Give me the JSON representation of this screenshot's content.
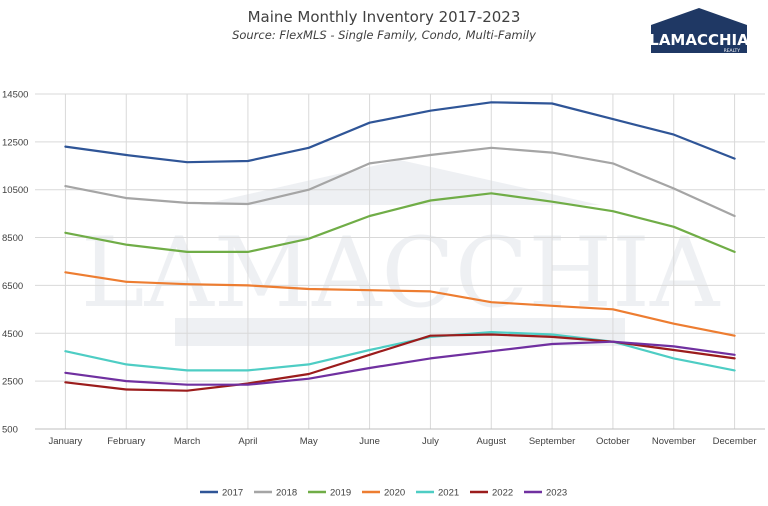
{
  "chart_data": {
    "type": "line",
    "title": "Maine Monthly Inventory 2017-2023",
    "subtitle": "Source: FlexMLS - Single Family, Condo, Multi-Family",
    "categories": [
      "January",
      "February",
      "March",
      "April",
      "May",
      "June",
      "July",
      "August",
      "September",
      "October",
      "November",
      "December"
    ],
    "ylim": [
      500,
      15000
    ],
    "yticks": [
      500,
      2500,
      4500,
      6500,
      8500,
      10500,
      12500,
      14500
    ],
    "grid": true,
    "legend": "bottom",
    "series": [
      {
        "name": "2017",
        "color": "#2f5597",
        "values": [
          12300,
          11950,
          11650,
          11700,
          12250,
          13300,
          13800,
          14150,
          14100,
          13450,
          12800,
          11800
        ]
      },
      {
        "name": "2018",
        "color": "#a5a5a5",
        "values": [
          10650,
          10150,
          9950,
          9900,
          10500,
          11600,
          11950,
          12250,
          12050,
          11600,
          10550,
          9400
        ]
      },
      {
        "name": "2019",
        "color": "#70ad47",
        "values": [
          8700,
          8200,
          7900,
          7900,
          8450,
          9400,
          10050,
          10350,
          10000,
          9600,
          8950,
          7900
        ]
      },
      {
        "name": "2020",
        "color": "#ed7d31",
        "values": [
          7050,
          6650,
          6550,
          6500,
          6350,
          6300,
          6250,
          5800,
          5650,
          5500,
          4900,
          4400
        ]
      },
      {
        "name": "2021",
        "color": "#4ecdc4",
        "values": [
          3750,
          3200,
          2950,
          2950,
          3200,
          3800,
          4350,
          4550,
          4450,
          4150,
          3450,
          2950
        ]
      },
      {
        "name": "2022",
        "color": "#9b1c1c",
        "values": [
          2450,
          2150,
          2100,
          2400,
          2800,
          3600,
          4400,
          4450,
          4350,
          4150,
          3800,
          3450
        ]
      },
      {
        "name": "2023",
        "color": "#7030a0",
        "values": [
          2850,
          2500,
          2350,
          2350,
          2600,
          3050,
          3450,
          3750,
          4050,
          4150,
          3950,
          3600
        ]
      }
    ]
  },
  "logo": {
    "name": "LAMACCHIA",
    "sub": "REALTY",
    "color": "#1f3864"
  },
  "watermark": {
    "text": "LAMACCHIA",
    "sub": "REALTY"
  }
}
